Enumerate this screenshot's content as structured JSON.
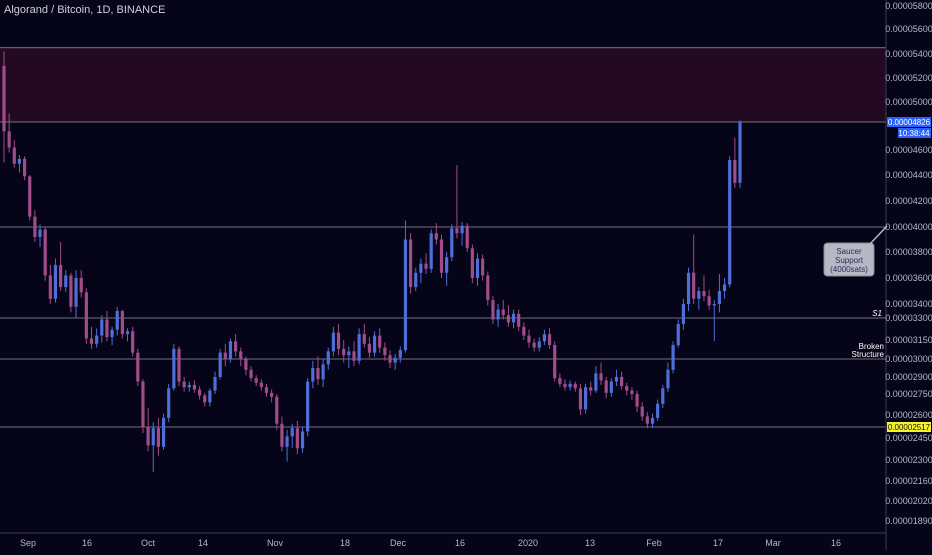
{
  "header": {
    "title": "Algorand / Bitcoin, 1D, BINANCE"
  },
  "colors": {
    "background": "#050418",
    "up": "#4f6fd8",
    "down": "#a24c8a",
    "zone": "#2a0a26",
    "line": "#b0b0bc",
    "price_tag": "#2962ff",
    "low_tag": "#f5f529",
    "callout_bg": "#b8b8c4"
  },
  "annotations": {
    "callout": [
      "Saucer",
      "Support",
      "(4000sats)"
    ],
    "s1": "S1",
    "broken": [
      "Broken",
      "Structure"
    ],
    "price_tag": "0.00004826",
    "time_tag": "10:38:44",
    "low_tag": "0.00002517"
  },
  "chart_data": {
    "type": "candlestick",
    "title": "Algorand / Bitcoin, 1D, BINANCE",
    "y_ticks": [
      "0.00005800",
      "0.00005600",
      "0.00005400",
      "0.00005200",
      "0.00005000",
      "0.00004826",
      "0.00004600",
      "0.00004400",
      "0.00004200",
      "0.00004000",
      "0.00003800",
      "0.00003600",
      "0.00003400",
      "0.00003300",
      "0.00003150",
      "0.00003000",
      "0.00002900",
      "0.00002750",
      "0.00002600",
      "0.00002517",
      "0.00002450",
      "0.00002300",
      "0.00002160",
      "0.00002020",
      "0.00001890"
    ],
    "x_ticks": [
      "Sep",
      "16",
      "Oct",
      "14",
      "Nov",
      "18",
      "Dec",
      "16",
      "2020",
      "13",
      "Feb",
      "17",
      "Mar",
      "16"
    ],
    "levels": [
      {
        "name": "zone-top",
        "value": 5.45e-05
      },
      {
        "name": "zone-bottom",
        "value": 4.826e-05
      },
      {
        "name": "saucer-support",
        "value": 4e-05
      },
      {
        "name": "s1",
        "value": 3.3e-05
      },
      {
        "name": "broken-structure",
        "value": 3e-05
      },
      {
        "name": "low",
        "value": 2.517e-05
      }
    ],
    "candles": [
      [
        53.0,
        54.2,
        45.0,
        47.5
      ],
      [
        47.5,
        49.0,
        45.8,
        46.2
      ],
      [
        46.2,
        46.8,
        44.6,
        44.9
      ],
      [
        44.9,
        45.6,
        44.2,
        45.3
      ],
      [
        45.3,
        45.5,
        43.6,
        43.9
      ],
      [
        43.9,
        44.0,
        40.5,
        40.8
      ],
      [
        40.8,
        41.3,
        38.8,
        39.2
      ],
      [
        39.2,
        40.2,
        38.4,
        39.8
      ],
      [
        39.8,
        40.0,
        35.8,
        36.2
      ],
      [
        36.2,
        37.0,
        34.0,
        34.4
      ],
      [
        34.4,
        37.5,
        34.1,
        37.0
      ],
      [
        37.0,
        38.8,
        35.0,
        35.3
      ],
      [
        35.3,
        36.6,
        34.9,
        36.2
      ],
      [
        36.2,
        36.4,
        33.4,
        33.8
      ],
      [
        33.8,
        36.6,
        33.0,
        36.0
      ],
      [
        36.0,
        36.6,
        34.5,
        34.9
      ],
      [
        34.9,
        35.2,
        31.2,
        31.6
      ],
      [
        31.6,
        32.4,
        30.8,
        31.2
      ],
      [
        31.2,
        32.3,
        30.9,
        31.8
      ],
      [
        31.8,
        33.2,
        31.3,
        32.9
      ],
      [
        32.9,
        33.5,
        31.4,
        31.7
      ],
      [
        31.7,
        32.4,
        31.1,
        32.2
      ],
      [
        32.2,
        33.8,
        31.8,
        33.5
      ],
      [
        33.5,
        33.6,
        31.6,
        31.9
      ],
      [
        31.9,
        32.3,
        31.4,
        32.1
      ],
      [
        32.1,
        32.4,
        30.2,
        30.5
      ],
      [
        30.5,
        30.8,
        28.2,
        28.6
      ],
      [
        28.6,
        28.8,
        24.8,
        25.2
      ],
      [
        25.2,
        26.5,
        23.6,
        24.0
      ],
      [
        24.0,
        25.5,
        22.2,
        25.1
      ],
      [
        25.1,
        25.8,
        23.3,
        23.9
      ],
      [
        23.9,
        26.1,
        23.7,
        25.8
      ],
      [
        25.8,
        28.4,
        25.5,
        28.0
      ],
      [
        28.0,
        31.2,
        27.8,
        30.8
      ],
      [
        30.8,
        31.0,
        28.2,
        28.6
      ],
      [
        28.6,
        29.0,
        27.7,
        28.1
      ],
      [
        28.1,
        28.6,
        27.7,
        28.3
      ],
      [
        28.3,
        28.7,
        27.6,
        27.9
      ],
      [
        27.9,
        28.2,
        27.1,
        27.4
      ],
      [
        27.4,
        27.6,
        26.6,
        26.9
      ],
      [
        26.9,
        28.0,
        26.6,
        27.8
      ],
      [
        27.8,
        29.3,
        27.5,
        29.0
      ],
      [
        29.0,
        30.8,
        28.8,
        30.5
      ],
      [
        30.5,
        31.2,
        29.6,
        30.0
      ],
      [
        30.0,
        31.6,
        29.8,
        31.4
      ],
      [
        31.4,
        31.9,
        30.2,
        30.6
      ],
      [
        30.6,
        30.9,
        29.6,
        30.0
      ],
      [
        30.0,
        30.2,
        29.1,
        29.4
      ],
      [
        29.4,
        29.6,
        28.6,
        28.9
      ],
      [
        28.9,
        29.1,
        28.2,
        28.5
      ],
      [
        28.5,
        28.8,
        27.8,
        28.1
      ],
      [
        28.1,
        28.4,
        27.3,
        27.6
      ],
      [
        27.6,
        27.9,
        26.9,
        27.3
      ],
      [
        27.3,
        27.5,
        25.0,
        25.4
      ],
      [
        25.4,
        25.9,
        23.6,
        23.9
      ],
      [
        23.9,
        25.0,
        22.9,
        24.6
      ],
      [
        24.6,
        25.4,
        23.8,
        25.1
      ],
      [
        25.1,
        25.6,
        23.4,
        23.8
      ],
      [
        23.8,
        25.2,
        23.5,
        24.9
      ],
      [
        24.9,
        28.9,
        24.6,
        28.6
      ],
      [
        28.6,
        29.9,
        28.0,
        29.5
      ],
      [
        29.5,
        30.2,
        28.3,
        28.8
      ],
      [
        28.8,
        30.0,
        28.1,
        29.7
      ],
      [
        29.7,
        30.9,
        29.4,
        30.6
      ],
      [
        30.6,
        32.4,
        30.2,
        32.0
      ],
      [
        32.0,
        32.6,
        30.3,
        30.8
      ],
      [
        30.8,
        31.5,
        29.8,
        30.3
      ],
      [
        30.3,
        31.0,
        29.5,
        30.6
      ],
      [
        30.6,
        31.4,
        29.6,
        29.9
      ],
      [
        29.9,
        32.3,
        29.7,
        31.9
      ],
      [
        31.9,
        32.6,
        30.9,
        31.2
      ],
      [
        31.2,
        31.7,
        30.1,
        30.5
      ],
      [
        30.5,
        32.1,
        30.2,
        31.8
      ],
      [
        31.8,
        32.3,
        30.5,
        30.9
      ],
      [
        30.9,
        31.3,
        29.9,
        30.3
      ],
      [
        30.3,
        30.7,
        29.5,
        29.8
      ],
      [
        29.8,
        30.4,
        29.4,
        30.1
      ],
      [
        30.1,
        31.0,
        29.8,
        30.7
      ],
      [
        30.7,
        40.5,
        30.5,
        39.0
      ],
      [
        39.0,
        39.5,
        34.8,
        35.3
      ],
      [
        35.3,
        36.8,
        35.0,
        36.4
      ],
      [
        36.4,
        37.5,
        35.6,
        37.1
      ],
      [
        37.1,
        37.9,
        36.3,
        36.7
      ],
      [
        36.7,
        39.8,
        36.4,
        39.5
      ],
      [
        39.5,
        40.3,
        38.6,
        39.0
      ],
      [
        39.0,
        39.4,
        36.0,
        36.4
      ],
      [
        36.4,
        38.0,
        35.4,
        37.6
      ],
      [
        37.6,
        40.2,
        37.3,
        39.9
      ],
      [
        39.9,
        44.8,
        39.1,
        39.5
      ],
      [
        39.5,
        40.4,
        38.5,
        40.1
      ],
      [
        40.1,
        40.3,
        38.0,
        38.3
      ],
      [
        38.3,
        38.6,
        35.6,
        36.0
      ],
      [
        36.0,
        37.9,
        35.4,
        37.5
      ],
      [
        37.5,
        37.8,
        35.8,
        36.2
      ],
      [
        36.2,
        36.5,
        33.9,
        34.3
      ],
      [
        34.3,
        34.6,
        32.6,
        32.9
      ],
      [
        32.9,
        34.0,
        32.4,
        33.6
      ],
      [
        33.6,
        34.3,
        32.9,
        33.2
      ],
      [
        33.2,
        33.9,
        32.4,
        32.7
      ],
      [
        32.7,
        33.6,
        32.3,
        33.3
      ],
      [
        33.3,
        33.6,
        32.1,
        32.4
      ],
      [
        32.4,
        32.7,
        31.5,
        31.8
      ],
      [
        31.8,
        32.2,
        30.9,
        31.3
      ],
      [
        31.3,
        31.6,
        30.6,
        30.9
      ],
      [
        30.9,
        31.7,
        30.6,
        31.4
      ],
      [
        31.4,
        32.2,
        31.1,
        31.9
      ],
      [
        31.9,
        32.3,
        30.8,
        31.1
      ],
      [
        31.1,
        31.4,
        28.6,
        28.9
      ],
      [
        28.9,
        29.2,
        28.1,
        28.4
      ],
      [
        28.4,
        28.8,
        27.8,
        28.1
      ],
      [
        28.1,
        28.7,
        27.8,
        28.4
      ],
      [
        28.4,
        28.6,
        27.7,
        28.0
      ],
      [
        28.0,
        28.4,
        26.0,
        26.4
      ],
      [
        26.4,
        28.4,
        26.1,
        28.1
      ],
      [
        28.1,
        28.6,
        27.4,
        27.8
      ],
      [
        27.8,
        29.6,
        27.6,
        29.2
      ],
      [
        29.2,
        29.8,
        28.3,
        28.7
      ],
      [
        28.7,
        29.0,
        27.2,
        27.6
      ],
      [
        27.6,
        28.9,
        27.3,
        28.6
      ],
      [
        28.6,
        29.4,
        28.2,
        29.0
      ],
      [
        29.0,
        29.3,
        27.9,
        28.2
      ],
      [
        28.2,
        28.5,
        27.4,
        27.8
      ],
      [
        27.8,
        28.1,
        27.1,
        27.5
      ],
      [
        27.5,
        27.8,
        26.2,
        26.6
      ],
      [
        26.6,
        26.9,
        25.6,
        25.9
      ],
      [
        25.9,
        26.2,
        25.1,
        25.4
      ],
      [
        25.4,
        26.1,
        25.1,
        25.8
      ],
      [
        25.8,
        27.1,
        25.6,
        26.8
      ],
      [
        26.8,
        28.3,
        26.5,
        28.0
      ],
      [
        28.0,
        29.8,
        27.7,
        29.4
      ],
      [
        29.4,
        31.4,
        29.2,
        31.1
      ],
      [
        31.1,
        32.9,
        30.9,
        32.6
      ],
      [
        32.6,
        34.4,
        32.2,
        34.0
      ],
      [
        34.0,
        36.8,
        33.5,
        36.4
      ],
      [
        36.4,
        39.4,
        34.0,
        34.4
      ],
      [
        34.4,
        35.3,
        33.6,
        35.0
      ],
      [
        35.0,
        36.2,
        34.2,
        34.6
      ],
      [
        34.6,
        35.1,
        33.6,
        33.9
      ],
      [
        33.9,
        34.3,
        31.4,
        34.0
      ],
      [
        34.0,
        36.3,
        33.4,
        35.0
      ],
      [
        35.0,
        36.0,
        34.4,
        35.5
      ],
      [
        35.5,
        45.5,
        35.3,
        45.2
      ],
      [
        45.2,
        47.0,
        43.0,
        43.4
      ],
      [
        43.4,
        48.4,
        43.0,
        48.26
      ]
    ]
  }
}
